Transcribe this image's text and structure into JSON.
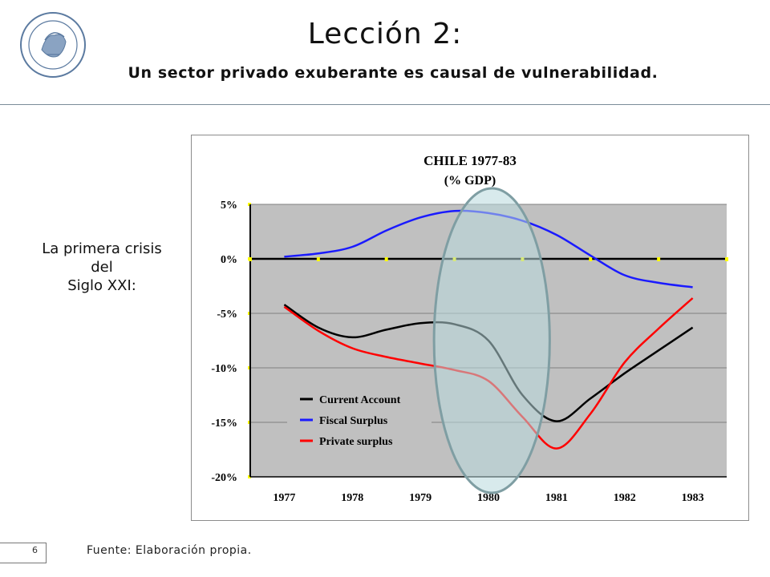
{
  "header": {
    "title": "Lección 2:",
    "subtitle": "Un sector privado exuberante es causal de vulnerabilidad."
  },
  "side_label": {
    "lines": [
      "La primera crisis",
      "del",
      "Siglo XXI:"
    ]
  },
  "footer": {
    "page_number": "6",
    "source": "Fuente: Elaboración propia."
  },
  "chart_data": {
    "type": "line",
    "title": "CHILE 1977-83",
    "subtitle": "(% GDP)",
    "x_categories": [
      "1977",
      "1978",
      "1979",
      "1980",
      "1981",
      "1982",
      "1983"
    ],
    "x": [
      1977,
      1977.5,
      1978,
      1978.5,
      1979,
      1979.5,
      1980,
      1980.5,
      1981,
      1981.5,
      1982,
      1982.5,
      1983
    ],
    "ylim": [
      -20,
      5
    ],
    "yticks": [
      5,
      0,
      -5,
      -10,
      -15,
      -20
    ],
    "ytick_labels": [
      "5%",
      "0%",
      "-5%",
      "-10%",
      "-15%",
      "-20%"
    ],
    "legend_position": "lower-left",
    "grid": true,
    "series": [
      {
        "name": "Current Account",
        "color": "#000000",
        "values": [
          -4.2,
          -6.3,
          -7.2,
          -6.5,
          -5.9,
          -6.0,
          -7.5,
          -12.5,
          -14.9,
          -12.8,
          -10.5,
          -8.4,
          -6.3
        ]
      },
      {
        "name": "Fiscal Surplus",
        "color": "#1a1aff",
        "values": [
          0.2,
          0.5,
          1.1,
          2.6,
          3.8,
          4.4,
          4.2,
          3.5,
          2.2,
          0.3,
          -1.5,
          -2.2,
          -2.6
        ]
      },
      {
        "name": "Private surplus",
        "color": "#ff0000",
        "values": [
          -4.4,
          -6.6,
          -8.2,
          -9.0,
          -9.6,
          -10.2,
          -11.2,
          -14.5,
          -17.4,
          -14.2,
          -9.5,
          -6.4,
          -3.6
        ]
      }
    ],
    "annotation": {
      "type": "ellipse",
      "x_range": [
        1979.2,
        1980.9
      ],
      "color": "#b8d9dc"
    },
    "colors": {
      "plot_bg": "#c0c0c0",
      "axis": "#000000",
      "tick_marker": "#ffff00"
    }
  }
}
